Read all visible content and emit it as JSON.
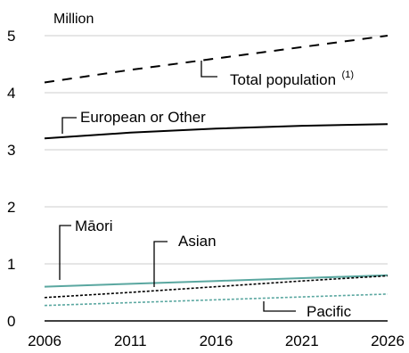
{
  "chart_data": {
    "type": "line",
    "title": "",
    "xlabel": "",
    "ylabel": "Million",
    "xlim": [
      2006,
      2026
    ],
    "ylim": [
      0,
      5
    ],
    "grid": true,
    "x_ticks": [
      "2006",
      "2011",
      "2016",
      "2021",
      "2026"
    ],
    "y_ticks": [
      "0",
      "1",
      "2",
      "3",
      "4",
      "5"
    ],
    "series": [
      {
        "name": "Total population",
        "superscript": "(1)",
        "color": "#000000",
        "style": "dashed",
        "x": [
          2006,
          2011,
          2016,
          2021,
          2026
        ],
        "values": [
          4.18,
          4.4,
          4.6,
          4.8,
          5.0
        ]
      },
      {
        "name": "European or Other",
        "color": "#000000",
        "style": "solid",
        "x": [
          2006,
          2011,
          2016,
          2021,
          2026
        ],
        "values": [
          3.2,
          3.3,
          3.37,
          3.42,
          3.45
        ]
      },
      {
        "name": "Māori",
        "color": "#5aa7a0",
        "style": "solid",
        "x": [
          2006,
          2011,
          2016,
          2021,
          2026
        ],
        "values": [
          0.6,
          0.65,
          0.7,
          0.75,
          0.8
        ]
      },
      {
        "name": "Asian",
        "color": "#000000",
        "style": "dotted",
        "x": [
          2006,
          2011,
          2016,
          2021,
          2026
        ],
        "values": [
          0.41,
          0.5,
          0.6,
          0.7,
          0.79
        ]
      },
      {
        "name": "Pacific",
        "color": "#5aa7a0",
        "style": "dotted",
        "x": [
          2006,
          2011,
          2016,
          2021,
          2026
        ],
        "values": [
          0.27,
          0.32,
          0.37,
          0.42,
          0.47
        ]
      }
    ]
  }
}
